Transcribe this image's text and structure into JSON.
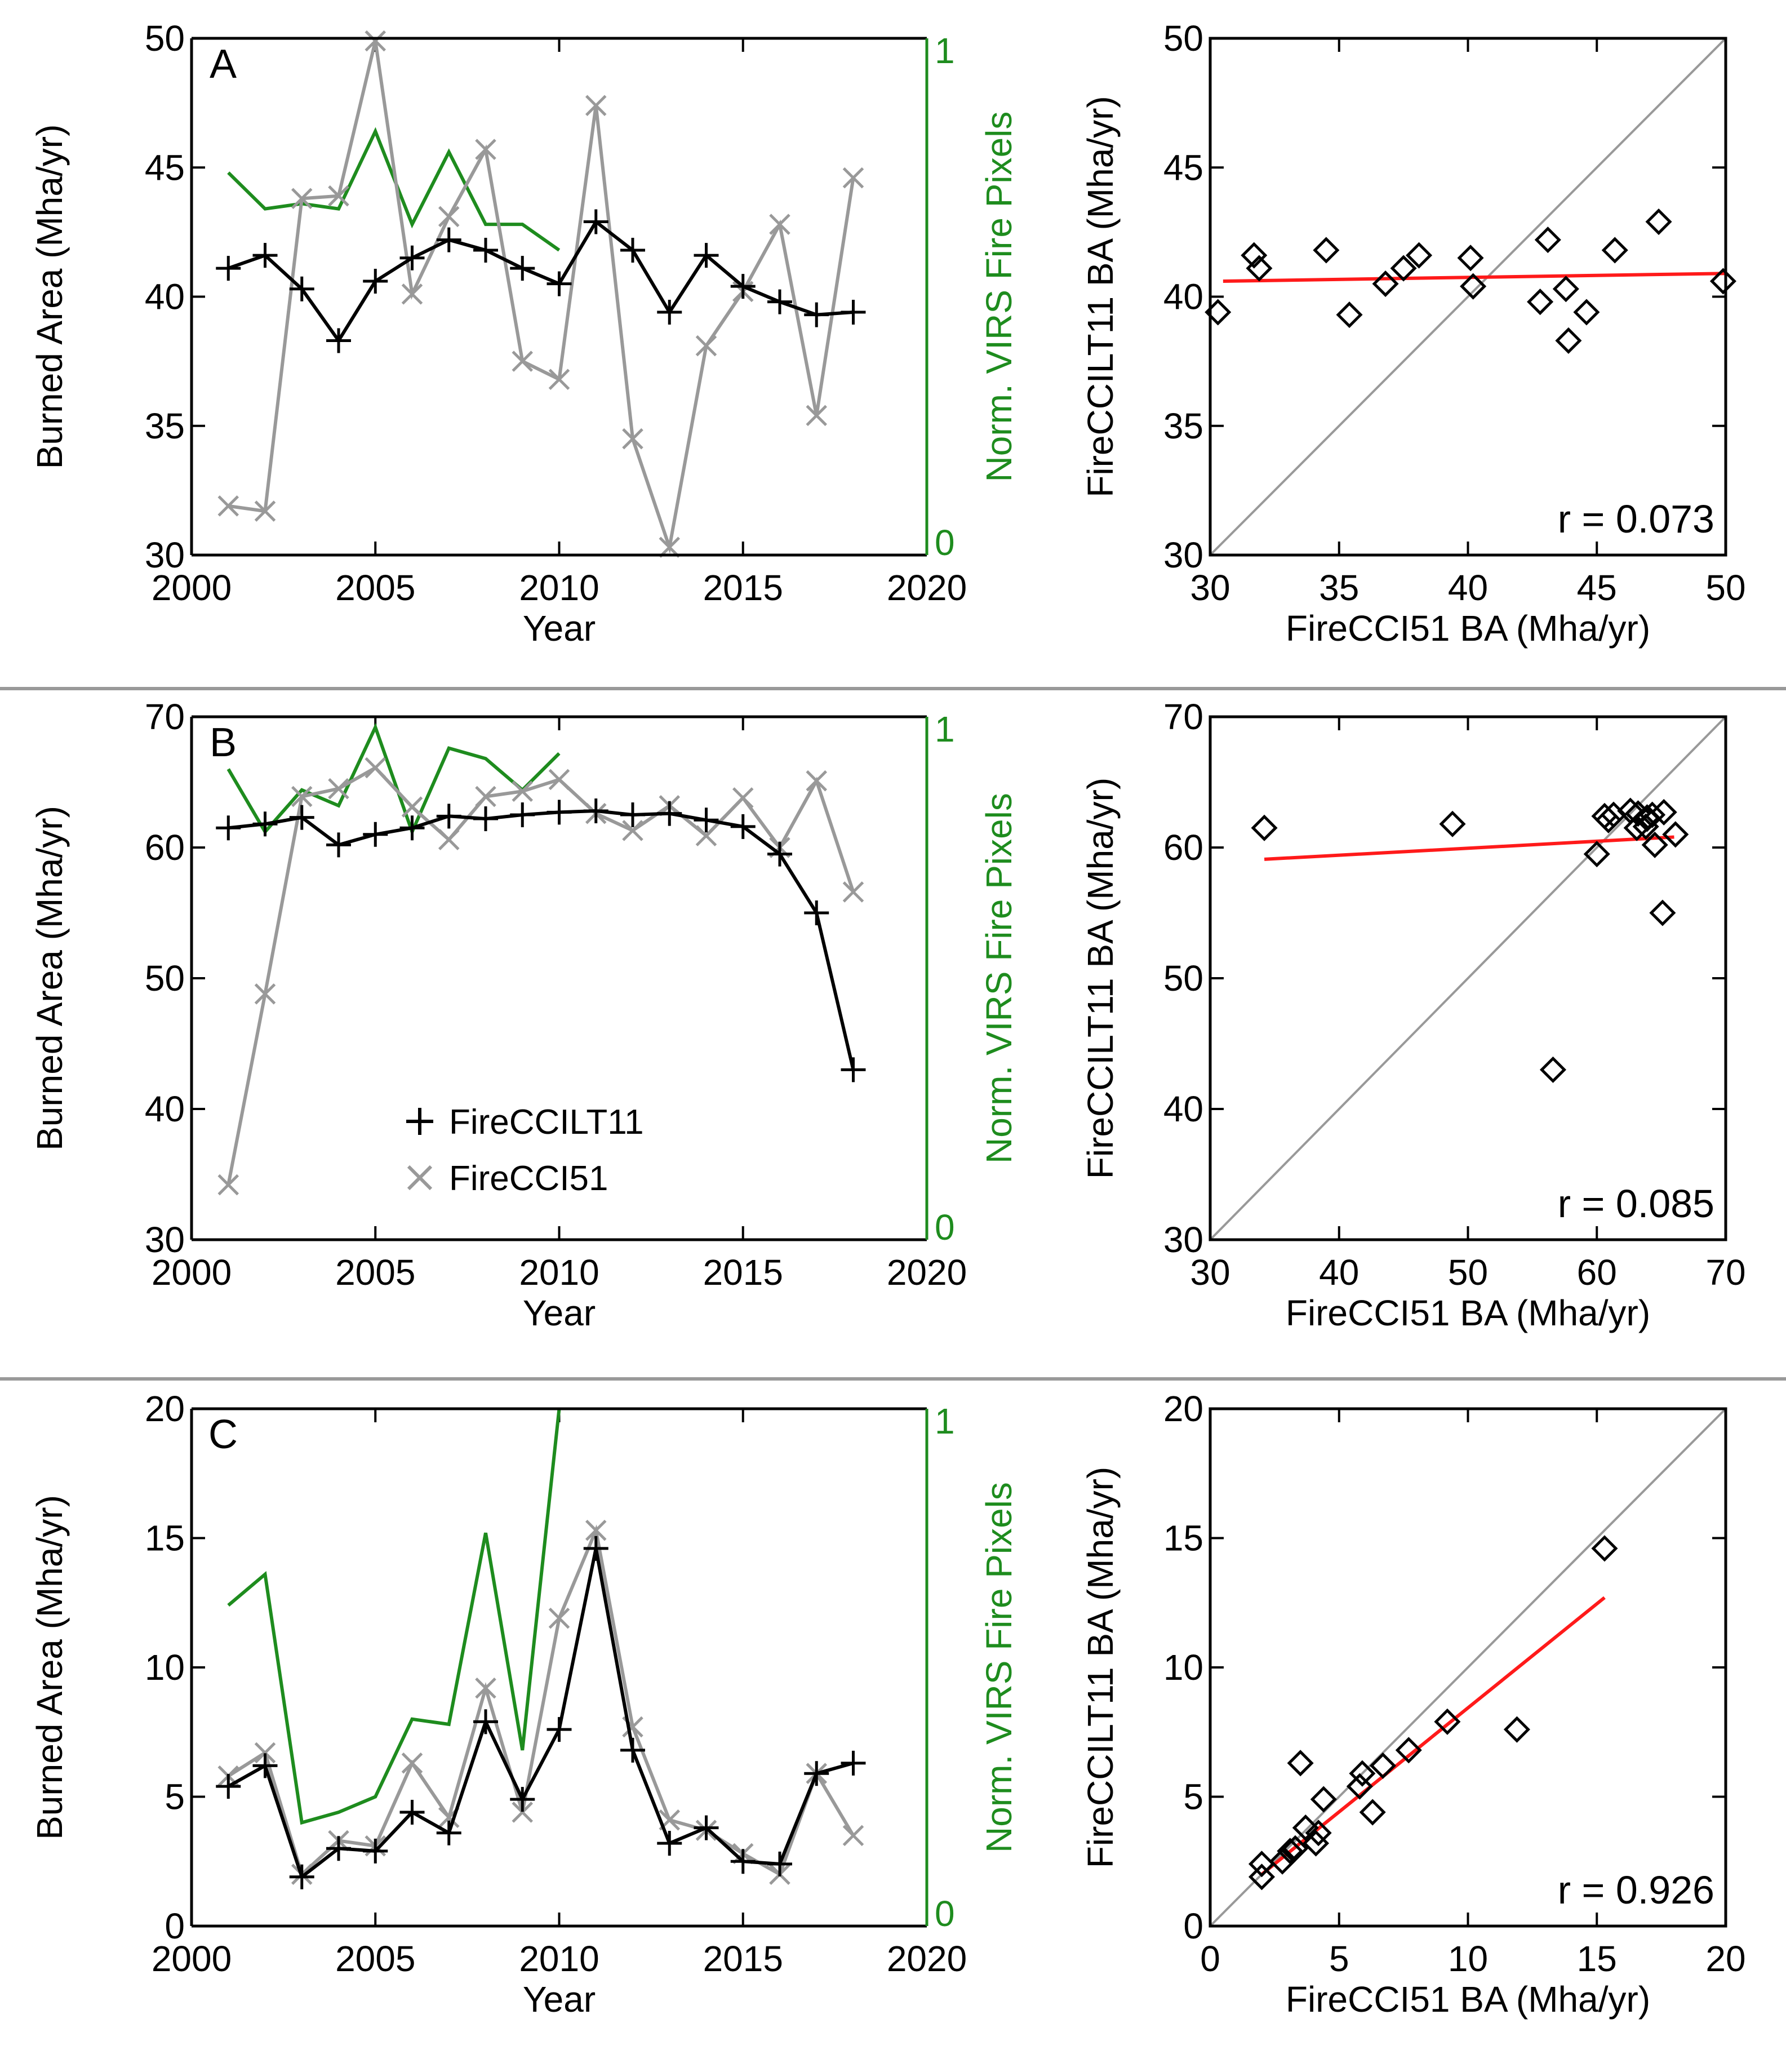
{
  "colors": {
    "fireccilt11": "#000000",
    "firecci51": "#999999",
    "virs": "#1e8c1e",
    "fit": "#ff1a1a",
    "identity": "#999999",
    "separator": "#999999"
  },
  "legend": {
    "fireccilt11": "FireCCILT11",
    "firecci51": "FireCCI51"
  },
  "chart_data": [
    {
      "panel": "A",
      "type": "line",
      "xlabel": "Year",
      "ylabel": "Burned Area (Mha/yr)",
      "y2label": "Norm. VIRS Fire Pixels",
      "xlim": [
        2000,
        2020
      ],
      "ylim": [
        30,
        50
      ],
      "y2lim": [
        0,
        1
      ],
      "xticks": [
        "2000",
        "2005",
        "2010",
        "2015",
        "2020"
      ],
      "yticks": [
        "30",
        "35",
        "40",
        "45",
        "50"
      ],
      "y2ticks": [
        "0",
        "1"
      ],
      "years": [
        2001,
        2002,
        2003,
        2004,
        2005,
        2006,
        2007,
        2008,
        2009,
        2010,
        2011,
        2012,
        2013,
        2014,
        2015,
        2016,
        2017,
        2018
      ],
      "series": [
        {
          "name": "FireCCILT11",
          "values": [
            41.1,
            41.6,
            40.3,
            38.3,
            40.6,
            41.5,
            42.2,
            41.8,
            41.1,
            40.5,
            42.9,
            41.8,
            39.4,
            41.6,
            40.4,
            39.8,
            39.3,
            39.4
          ]
        },
        {
          "name": "FireCCI51",
          "values": [
            31.9,
            31.7,
            43.8,
            43.9,
            49.9,
            40.1,
            43.1,
            45.7,
            37.5,
            36.8,
            47.4,
            34.5,
            30.3,
            38.1,
            40.2,
            42.8,
            35.4,
            44.6
          ]
        }
      ],
      "virs": {
        "years": [
          2001,
          2002,
          2003,
          2004,
          2005,
          2006,
          2007,
          2008,
          2009,
          2010
        ],
        "values": [
          0.74,
          0.67,
          0.68,
          0.67,
          0.82,
          0.64,
          0.78,
          0.64,
          0.64,
          0.59
        ]
      }
    },
    {
      "panel": "A",
      "type": "scatter",
      "xlabel": "FireCCI51 BA (Mha/yr)",
      "ylabel": "FireCCILT11 BA (Mha/yr)",
      "xlim": [
        30,
        50
      ],
      "ylim": [
        30,
        50
      ],
      "xticks": [
        "30",
        "35",
        "40",
        "45",
        "50"
      ],
      "yticks": [
        "30",
        "35",
        "40",
        "45",
        "50"
      ],
      "annotation": "r = 0.073",
      "fit": [
        [
          30.5,
          40.6
        ],
        [
          50,
          40.9
        ]
      ],
      "x": [
        31.9,
        31.7,
        43.8,
        43.9,
        49.9,
        40.1,
        43.1,
        45.7,
        37.5,
        36.8,
        47.4,
        34.5,
        30.3,
        38.1,
        40.2,
        42.8,
        35.4,
        44.6
      ],
      "y": [
        41.1,
        41.6,
        40.3,
        38.3,
        40.6,
        41.5,
        42.2,
        41.8,
        41.1,
        40.5,
        42.9,
        41.8,
        39.4,
        41.6,
        40.4,
        39.8,
        39.3,
        39.4
      ]
    },
    {
      "panel": "B",
      "type": "line",
      "xlabel": "Year",
      "ylabel": "Burned Area (Mha/yr)",
      "y2label": "Norm. VIRS Fire Pixels",
      "xlim": [
        2000,
        2020
      ],
      "ylim": [
        30,
        70
      ],
      "y2lim": [
        0,
        1
      ],
      "xticks": [
        "2000",
        "2005",
        "2010",
        "2015",
        "2020"
      ],
      "yticks": [
        "30",
        "40",
        "50",
        "60",
        "70"
      ],
      "y2ticks": [
        "0",
        "1"
      ],
      "years": [
        2001,
        2002,
        2003,
        2004,
        2005,
        2006,
        2007,
        2008,
        2009,
        2010,
        2011,
        2012,
        2013,
        2014,
        2015,
        2016,
        2017,
        2018
      ],
      "series": [
        {
          "name": "FireCCILT11",
          "values": [
            61.5,
            61.8,
            62.3,
            60.2,
            61.0,
            61.5,
            62.4,
            62.2,
            62.5,
            62.7,
            62.8,
            62.5,
            62.6,
            62.1,
            61.6,
            59.5,
            55.0,
            43.0
          ]
        },
        {
          "name": "FireCCI51",
          "values": [
            34.2,
            48.8,
            63.9,
            64.5,
            66.1,
            63.1,
            60.6,
            63.9,
            64.3,
            65.2,
            62.6,
            61.3,
            63.2,
            60.9,
            63.8,
            60.0,
            65.1,
            56.6
          ]
        }
      ],
      "virs": {
        "years": [
          2001,
          2002,
          2003,
          2004,
          2005,
          2006,
          2007,
          2008,
          2009,
          2010
        ],
        "values": [
          0.9,
          0.78,
          0.86,
          0.83,
          0.98,
          0.78,
          0.94,
          0.92,
          0.86,
          0.93
        ]
      }
    },
    {
      "panel": "B",
      "type": "scatter",
      "xlabel": "FireCCI51 BA (Mha/yr)",
      "ylabel": "FireCCILT11 BA (Mha/yr)",
      "xlim": [
        30,
        70
      ],
      "ylim": [
        30,
        70
      ],
      "xticks": [
        "30",
        "40",
        "50",
        "60",
        "70"
      ],
      "yticks": [
        "30",
        "40",
        "50",
        "60",
        "70"
      ],
      "annotation": "r = 0.085",
      "fit": [
        [
          34.2,
          59.1
        ],
        [
          66,
          60.8
        ]
      ],
      "x": [
        34.2,
        48.8,
        63.9,
        64.5,
        66.1,
        63.1,
        60.6,
        63.9,
        64.3,
        65.2,
        62.6,
        61.3,
        63.2,
        60.9,
        63.8,
        60.0,
        65.1,
        56.6
      ],
      "y": [
        61.5,
        61.8,
        62.3,
        60.2,
        61.0,
        61.5,
        62.4,
        62.2,
        62.5,
        62.7,
        62.8,
        62.5,
        62.6,
        62.1,
        61.6,
        59.5,
        55.0,
        43.0
      ]
    },
    {
      "panel": "C",
      "type": "line",
      "xlabel": "Year",
      "ylabel": "Burned Area (Mha/yr)",
      "y2label": "Norm. VIRS Fire Pixels",
      "xlim": [
        2000,
        2020
      ],
      "ylim": [
        0,
        20
      ],
      "y2lim": [
        0,
        1
      ],
      "xticks": [
        "2000",
        "2005",
        "2010",
        "2015",
        "2020"
      ],
      "yticks": [
        "0",
        "5",
        "10",
        "15",
        "20"
      ],
      "y2ticks": [
        "0",
        "1"
      ],
      "years": [
        2001,
        2002,
        2003,
        2004,
        2005,
        2006,
        2007,
        2008,
        2009,
        2010,
        2011,
        2012,
        2013,
        2014,
        2015,
        2016,
        2017,
        2018
      ],
      "series": [
        {
          "name": "FireCCILT11",
          "values": [
            5.4,
            6.2,
            1.9,
            3.0,
            2.9,
            4.4,
            3.6,
            7.9,
            4.9,
            7.6,
            14.6,
            6.8,
            3.2,
            3.8,
            2.5,
            2.4,
            5.9,
            6.3
          ]
        },
        {
          "name": "FireCCI51",
          "values": [
            5.8,
            6.7,
            2.0,
            3.3,
            3.1,
            6.3,
            4.2,
            9.2,
            4.4,
            11.9,
            15.3,
            7.7,
            4.1,
            3.7,
            2.8,
            2.0,
            5.9,
            3.5
          ]
        }
      ],
      "virs": {
        "years": [
          2001,
          2002,
          2003,
          2004,
          2005,
          2006,
          2007,
          2008,
          2009,
          2010
        ],
        "values": [
          0.62,
          0.68,
          0.2,
          0.22,
          0.25,
          0.4,
          0.39,
          0.76,
          0.34,
          1.0
        ]
      }
    },
    {
      "panel": "C",
      "type": "scatter",
      "xlabel": "FireCCI51 BA (Mha/yr)",
      "ylabel": "FireCCILT11 BA (Mha/yr)",
      "xlim": [
        0,
        20
      ],
      "ylim": [
        0,
        20
      ],
      "xticks": [
        "0",
        "5",
        "10",
        "15",
        "20"
      ],
      "yticks": [
        "0",
        "5",
        "10",
        "15",
        "20"
      ],
      "annotation": "r = 0.926",
      "fit": [
        [
          2,
          2.0
        ],
        [
          15.3,
          12.7
        ]
      ],
      "x": [
        5.8,
        6.7,
        2.0,
        3.3,
        3.1,
        6.3,
        4.2,
        9.2,
        4.4,
        11.9,
        15.3,
        7.7,
        4.1,
        3.7,
        2.8,
        2.0,
        5.9,
        3.5
      ],
      "y": [
        5.4,
        6.2,
        1.9,
        3.0,
        2.9,
        4.4,
        3.6,
        7.9,
        4.9,
        7.6,
        14.6,
        6.8,
        3.2,
        3.8,
        2.5,
        2.4,
        5.9,
        6.3
      ]
    }
  ]
}
